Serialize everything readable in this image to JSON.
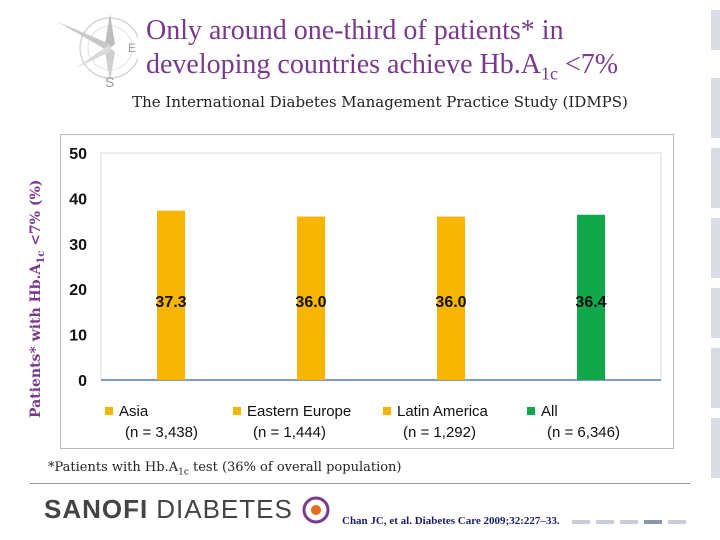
{
  "slide": {
    "title_line1": "Only around one-third of patients* in",
    "title_line2_pre": "developing countries achieve Hb.A",
    "title_sub": "1c",
    "title_post": " <7%",
    "subtitle": "The International Diabetes Management Practice Study (IDMPS)",
    "ylabel_pre": "Patients* with Hb.A",
    "ylabel_sub": "1c",
    "ylabel_post": " <7% (%)",
    "footnote_pre": "*Patients with Hb.A",
    "footnote_sub": "1c",
    "footnote_post": " test (36% of overall population)",
    "logo_sanofi": "SANOFI",
    "logo_diabetes": "DIABETES",
    "citation": "Chan JC, et al. Diabetes Care 2009;32:227–33."
  },
  "chart_data": {
    "type": "bar",
    "title": "",
    "ylabel": "Patients* with Hb.A1c <7% (%)",
    "ylim": [
      0,
      50
    ],
    "yticks": [
      "0",
      "10",
      "20",
      "30",
      "40",
      "50"
    ],
    "categories": [
      "Asia",
      "Eastern Europe",
      "Latin America",
      "All"
    ],
    "counts": [
      "(n = 3,438)",
      "(n = 1,444)",
      "(n = 1,292)",
      "(n = 6,346)"
    ],
    "values": [
      37.3,
      36.0,
      36.0,
      36.4
    ],
    "labels": [
      "37.3",
      "36.0",
      "36.0",
      "36.4"
    ],
    "colors": [
      "#f7b500",
      "#f7b500",
      "#f7b500",
      "#12a74a"
    ]
  },
  "colors": {
    "title": "#7a3a8c",
    "bar_yellow": "#f7b500",
    "bar_green": "#12a74a"
  }
}
